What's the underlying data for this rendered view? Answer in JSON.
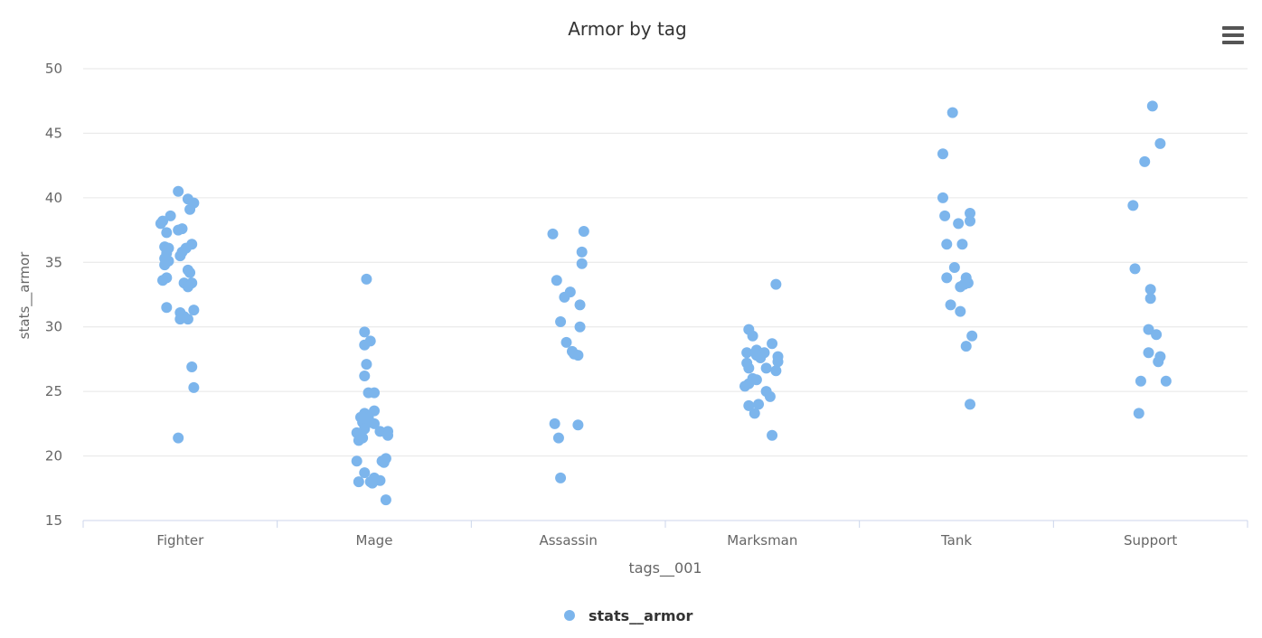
{
  "menu": {
    "icon": "hamburger-menu-icon"
  },
  "colors": {
    "point": "#7cb5ec",
    "grid": "#e6e6e6",
    "axis_line": "#ccd6eb",
    "text": "#666666",
    "title": "#333333"
  },
  "chart_data": {
    "type": "scatter",
    "title": "Armor by tag",
    "xlabel": "tags__001",
    "ylabel": "stats__armor",
    "categories": [
      "Fighter",
      "Mage",
      "Assassin",
      "Marksman",
      "Tank",
      "Support"
    ],
    "ylim": [
      15,
      50
    ],
    "yticks": [
      "15",
      "20",
      "25",
      "30",
      "35",
      "40",
      "45",
      "50"
    ],
    "grid": true,
    "legend_position": "bottom-center",
    "series": [
      {
        "name": "stats__armor",
        "points": [
          {
            "c": 0,
            "j": -0.01,
            "y": 40.5
          },
          {
            "c": 0,
            "j": 0.04,
            "y": 39.9
          },
          {
            "c": 0,
            "j": 0.07,
            "y": 39.6
          },
          {
            "c": 0,
            "j": 0.05,
            "y": 39.1
          },
          {
            "c": 0,
            "j": -0.05,
            "y": 38.6
          },
          {
            "c": 0,
            "j": -0.09,
            "y": 38.2
          },
          {
            "c": 0,
            "j": -0.1,
            "y": 38.0
          },
          {
            "c": 0,
            "j": 0.01,
            "y": 37.6
          },
          {
            "c": 0,
            "j": -0.01,
            "y": 37.5
          },
          {
            "c": 0,
            "j": -0.07,
            "y": 37.3
          },
          {
            "c": 0,
            "j": 0.06,
            "y": 36.4
          },
          {
            "c": 0,
            "j": -0.08,
            "y": 36.2
          },
          {
            "c": 0,
            "j": -0.06,
            "y": 36.1
          },
          {
            "c": 0,
            "j": 0.03,
            "y": 36.1
          },
          {
            "c": 0,
            "j": 0.01,
            "y": 35.8
          },
          {
            "c": 0,
            "j": -0.07,
            "y": 35.7
          },
          {
            "c": 0,
            "j": 0.0,
            "y": 35.5
          },
          {
            "c": 0,
            "j": -0.08,
            "y": 35.3
          },
          {
            "c": 0,
            "j": -0.06,
            "y": 35.1
          },
          {
            "c": 0,
            "j": -0.08,
            "y": 34.8
          },
          {
            "c": 0,
            "j": 0.04,
            "y": 34.4
          },
          {
            "c": 0,
            "j": 0.05,
            "y": 34.2
          },
          {
            "c": 0,
            "j": -0.07,
            "y": 33.8
          },
          {
            "c": 0,
            "j": -0.09,
            "y": 33.6
          },
          {
            "c": 0,
            "j": 0.02,
            "y": 33.4
          },
          {
            "c": 0,
            "j": 0.06,
            "y": 33.4
          },
          {
            "c": 0,
            "j": 0.04,
            "y": 33.1
          },
          {
            "c": 0,
            "j": -0.07,
            "y": 31.5
          },
          {
            "c": 0,
            "j": 0.07,
            "y": 31.3
          },
          {
            "c": 0,
            "j": 0.0,
            "y": 31.1
          },
          {
            "c": 0,
            "j": 0.02,
            "y": 30.8
          },
          {
            "c": 0,
            "j": 0.0,
            "y": 30.6
          },
          {
            "c": 0,
            "j": 0.04,
            "y": 30.6
          },
          {
            "c": 0,
            "j": 0.06,
            "y": 26.9
          },
          {
            "c": 0,
            "j": 0.07,
            "y": 25.3
          },
          {
            "c": 0,
            "j": -0.01,
            "y": 21.4
          },
          {
            "c": 1,
            "j": -0.04,
            "y": 33.7
          },
          {
            "c": 1,
            "j": -0.05,
            "y": 29.6
          },
          {
            "c": 1,
            "j": -0.02,
            "y": 28.9
          },
          {
            "c": 1,
            "j": -0.05,
            "y": 28.6
          },
          {
            "c": 1,
            "j": -0.04,
            "y": 27.1
          },
          {
            "c": 1,
            "j": -0.05,
            "y": 26.2
          },
          {
            "c": 1,
            "j": -0.03,
            "y": 24.9
          },
          {
            "c": 1,
            "j": 0.0,
            "y": 24.9
          },
          {
            "c": 1,
            "j": 0.0,
            "y": 23.5
          },
          {
            "c": 1,
            "j": -0.05,
            "y": 23.3
          },
          {
            "c": 1,
            "j": -0.07,
            "y": 23.0
          },
          {
            "c": 1,
            "j": -0.03,
            "y": 23.0
          },
          {
            "c": 1,
            "j": -0.06,
            "y": 22.6
          },
          {
            "c": 1,
            "j": -0.02,
            "y": 22.6
          },
          {
            "c": 1,
            "j": 0.0,
            "y": 22.5
          },
          {
            "c": 1,
            "j": -0.05,
            "y": 22.1
          },
          {
            "c": 1,
            "j": 0.03,
            "y": 21.9
          },
          {
            "c": 1,
            "j": 0.07,
            "y": 21.9
          },
          {
            "c": 1,
            "j": -0.09,
            "y": 21.8
          },
          {
            "c": 1,
            "j": -0.07,
            "y": 21.6
          },
          {
            "c": 1,
            "j": 0.07,
            "y": 21.6
          },
          {
            "c": 1,
            "j": -0.06,
            "y": 21.4
          },
          {
            "c": 1,
            "j": -0.08,
            "y": 21.2
          },
          {
            "c": 1,
            "j": 0.06,
            "y": 19.8
          },
          {
            "c": 1,
            "j": 0.04,
            "y": 19.6
          },
          {
            "c": 1,
            "j": -0.09,
            "y": 19.6
          },
          {
            "c": 1,
            "j": 0.05,
            "y": 19.5
          },
          {
            "c": 1,
            "j": -0.05,
            "y": 18.7
          },
          {
            "c": 1,
            "j": 0.0,
            "y": 18.3
          },
          {
            "c": 1,
            "j": 0.03,
            "y": 18.1
          },
          {
            "c": 1,
            "j": -0.02,
            "y": 18.0
          },
          {
            "c": 1,
            "j": -0.08,
            "y": 18.0
          },
          {
            "c": 1,
            "j": -0.01,
            "y": 17.9
          },
          {
            "c": 1,
            "j": 0.06,
            "y": 16.6
          },
          {
            "c": 2,
            "j": 0.08,
            "y": 37.4
          },
          {
            "c": 2,
            "j": -0.08,
            "y": 37.2
          },
          {
            "c": 2,
            "j": 0.07,
            "y": 35.8
          },
          {
            "c": 2,
            "j": 0.07,
            "y": 34.9
          },
          {
            "c": 2,
            "j": -0.06,
            "y": 33.6
          },
          {
            "c": 2,
            "j": 0.01,
            "y": 32.7
          },
          {
            "c": 2,
            "j": -0.02,
            "y": 32.3
          },
          {
            "c": 2,
            "j": 0.06,
            "y": 31.7
          },
          {
            "c": 2,
            "j": -0.04,
            "y": 30.4
          },
          {
            "c": 2,
            "j": 0.06,
            "y": 30.0
          },
          {
            "c": 2,
            "j": -0.01,
            "y": 28.8
          },
          {
            "c": 2,
            "j": 0.02,
            "y": 28.1
          },
          {
            "c": 2,
            "j": 0.03,
            "y": 27.9
          },
          {
            "c": 2,
            "j": 0.05,
            "y": 27.8
          },
          {
            "c": 2,
            "j": -0.07,
            "y": 22.5
          },
          {
            "c": 2,
            "j": 0.05,
            "y": 22.4
          },
          {
            "c": 2,
            "j": -0.05,
            "y": 21.4
          },
          {
            "c": 2,
            "j": -0.04,
            "y": 18.3
          },
          {
            "c": 3,
            "j": 0.07,
            "y": 33.3
          },
          {
            "c": 3,
            "j": -0.07,
            "y": 29.8
          },
          {
            "c": 3,
            "j": -0.05,
            "y": 29.3
          },
          {
            "c": 3,
            "j": 0.05,
            "y": 28.7
          },
          {
            "c": 3,
            "j": -0.03,
            "y": 28.2
          },
          {
            "c": 3,
            "j": -0.08,
            "y": 28.0
          },
          {
            "c": 3,
            "j": 0.01,
            "y": 28.0
          },
          {
            "c": 3,
            "j": -0.03,
            "y": 27.8
          },
          {
            "c": 3,
            "j": 0.08,
            "y": 27.7
          },
          {
            "c": 3,
            "j": -0.01,
            "y": 27.6
          },
          {
            "c": 3,
            "j": 0.08,
            "y": 27.3
          },
          {
            "c": 3,
            "j": -0.08,
            "y": 27.2
          },
          {
            "c": 3,
            "j": -0.07,
            "y": 26.8
          },
          {
            "c": 3,
            "j": 0.02,
            "y": 26.8
          },
          {
            "c": 3,
            "j": 0.07,
            "y": 26.6
          },
          {
            "c": 3,
            "j": -0.05,
            "y": 26.0
          },
          {
            "c": 3,
            "j": -0.03,
            "y": 25.9
          },
          {
            "c": 3,
            "j": -0.07,
            "y": 25.6
          },
          {
            "c": 3,
            "j": -0.09,
            "y": 25.4
          },
          {
            "c": 3,
            "j": 0.02,
            "y": 25.0
          },
          {
            "c": 3,
            "j": 0.04,
            "y": 24.6
          },
          {
            "c": 3,
            "j": -0.07,
            "y": 23.9
          },
          {
            "c": 3,
            "j": -0.02,
            "y": 24.0
          },
          {
            "c": 3,
            "j": -0.04,
            "y": 23.3
          },
          {
            "c": 3,
            "j": 0.05,
            "y": 21.6
          },
          {
            "c": 4,
            "j": -0.02,
            "y": 46.6
          },
          {
            "c": 4,
            "j": -0.07,
            "y": 43.4
          },
          {
            "c": 4,
            "j": -0.07,
            "y": 40.0
          },
          {
            "c": 4,
            "j": 0.07,
            "y": 38.8
          },
          {
            "c": 4,
            "j": -0.06,
            "y": 38.6
          },
          {
            "c": 4,
            "j": 0.07,
            "y": 38.2
          },
          {
            "c": 4,
            "j": 0.01,
            "y": 38.0
          },
          {
            "c": 4,
            "j": -0.05,
            "y": 36.4
          },
          {
            "c": 4,
            "j": 0.03,
            "y": 36.4
          },
          {
            "c": 4,
            "j": -0.01,
            "y": 34.6
          },
          {
            "c": 4,
            "j": -0.05,
            "y": 33.8
          },
          {
            "c": 4,
            "j": 0.05,
            "y": 33.8
          },
          {
            "c": 4,
            "j": 0.06,
            "y": 33.4
          },
          {
            "c": 4,
            "j": 0.04,
            "y": 33.3
          },
          {
            "c": 4,
            "j": 0.02,
            "y": 33.1
          },
          {
            "c": 4,
            "j": -0.03,
            "y": 31.7
          },
          {
            "c": 4,
            "j": 0.02,
            "y": 31.2
          },
          {
            "c": 4,
            "j": 0.08,
            "y": 29.3
          },
          {
            "c": 4,
            "j": 0.05,
            "y": 28.5
          },
          {
            "c": 4,
            "j": 0.07,
            "y": 24.0
          },
          {
            "c": 5,
            "j": 0.01,
            "y": 47.1
          },
          {
            "c": 5,
            "j": 0.05,
            "y": 44.2
          },
          {
            "c": 5,
            "j": -0.03,
            "y": 42.8
          },
          {
            "c": 5,
            "j": -0.09,
            "y": 39.4
          },
          {
            "c": 5,
            "j": -0.08,
            "y": 34.5
          },
          {
            "c": 5,
            "j": 0.0,
            "y": 32.9
          },
          {
            "c": 5,
            "j": 0.0,
            "y": 32.2
          },
          {
            "c": 5,
            "j": -0.01,
            "y": 29.8
          },
          {
            "c": 5,
            "j": 0.03,
            "y": 29.4
          },
          {
            "c": 5,
            "j": -0.01,
            "y": 28.0
          },
          {
            "c": 5,
            "j": 0.05,
            "y": 27.7
          },
          {
            "c": 5,
            "j": 0.04,
            "y": 27.3
          },
          {
            "c": 5,
            "j": -0.05,
            "y": 25.8
          },
          {
            "c": 5,
            "j": 0.08,
            "y": 25.8
          },
          {
            "c": 5,
            "j": -0.06,
            "y": 23.3
          }
        ]
      }
    ]
  }
}
